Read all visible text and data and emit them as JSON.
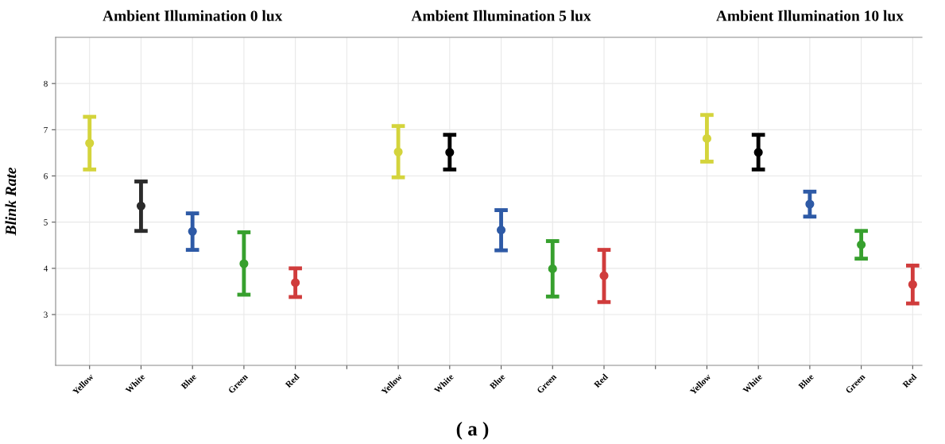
{
  "chart_data": {
    "type": "scatter",
    "ylabel": "Blink Rate",
    "categories": [
      "Yellow",
      "White",
      "Blue",
      "Green",
      "Red",
      null,
      "Yellow",
      "White",
      "Blue",
      "Green",
      "Red",
      null,
      "Yellow",
      "White",
      "Blue",
      "Green",
      "Red"
    ],
    "values": [
      6.71,
      5.35,
      4.8,
      4.1,
      3.69,
      null,
      6.52,
      6.51,
      4.83,
      3.99,
      3.84,
      null,
      6.81,
      6.51,
      5.39,
      4.51,
      3.65
    ],
    "errors": [
      [
        6.14,
        7.28
      ],
      [
        4.81,
        5.88
      ],
      [
        4.4,
        5.19
      ],
      [
        3.43,
        4.78
      ],
      [
        3.38,
        4.0
      ],
      null,
      [
        5.97,
        7.08
      ],
      [
        6.14,
        6.89
      ],
      [
        4.39,
        5.26
      ],
      [
        3.39,
        4.59
      ],
      [
        3.27,
        4.4
      ],
      null,
      [
        6.31,
        7.32
      ],
      [
        6.14,
        6.89
      ],
      [
        5.12,
        5.66
      ],
      [
        4.21,
        4.81
      ],
      [
        3.24,
        4.06
      ]
    ],
    "colors": [
      "#d4d43c",
      "#2b2b2b",
      "#2e5aa6",
      "#37a02e",
      "#d03c3c",
      null,
      "#d4d43c",
      "#000000",
      "#2e5aa6",
      "#37a02e",
      "#d03c3c",
      null,
      "#d4d43c",
      "#000000",
      "#2e5aa6",
      "#37a02e",
      "#d03c3c"
    ],
    "ylim": [
      1.9,
      9
    ],
    "yticks": [
      3,
      4,
      5,
      6,
      7,
      8
    ],
    "grid": true,
    "marker": "circle",
    "annotations": [
      "Ambient Illumination 0 lux",
      "Ambient Illumination 5 lux",
      "Ambient Illumination 10 lux",
      "( a )"
    ]
  }
}
